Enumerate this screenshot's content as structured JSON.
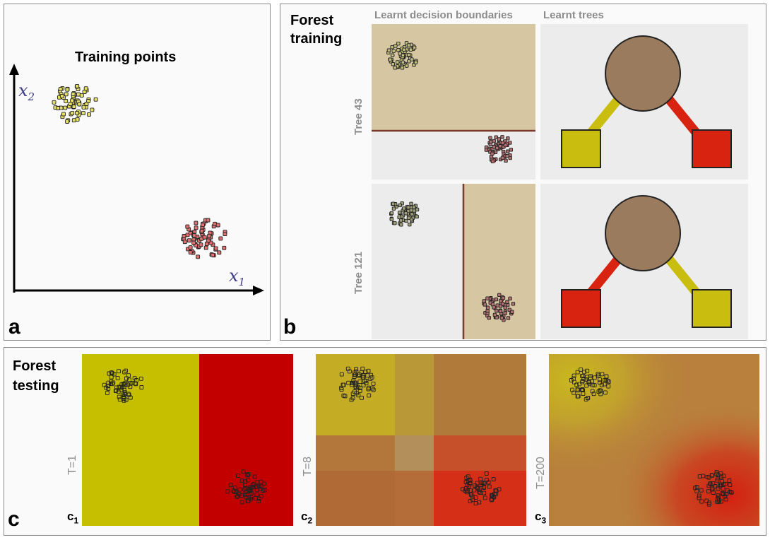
{
  "panel_a": {
    "title": "Training points",
    "x_label": "x",
    "x_sub": "1",
    "y_label": "x",
    "y_sub": "2",
    "tag": "a"
  },
  "panel_b": {
    "title_line1": "Forest",
    "title_line2": "training",
    "col1_header": "Learnt decision boundaries",
    "col2_header": "Learnt trees",
    "tree1_label": "Tree 43",
    "tree2_label": "Tree 121",
    "tag": "b"
  },
  "panel_c": {
    "title_line1": "Forest",
    "title_line2": "testing",
    "tag": "c",
    "sub_c1_main": "c",
    "sub_c1_idx": "1",
    "sub_c2_main": "c",
    "sub_c2_idx": "2",
    "sub_c3_main": "c",
    "sub_c3_idx": "3",
    "t1_label": "T=1",
    "t2_label": "T=8",
    "t3_label": "T=200"
  },
  "colors": {
    "class_yellow": "#c5bf00",
    "class_red": "#c20000",
    "tree_root": "#9b7b5e",
    "leaf_yellow": "#c9bd10",
    "leaf_red": "#d82310",
    "boundary": "#7a3a2e",
    "region_tan": "#d6c7a2"
  }
}
